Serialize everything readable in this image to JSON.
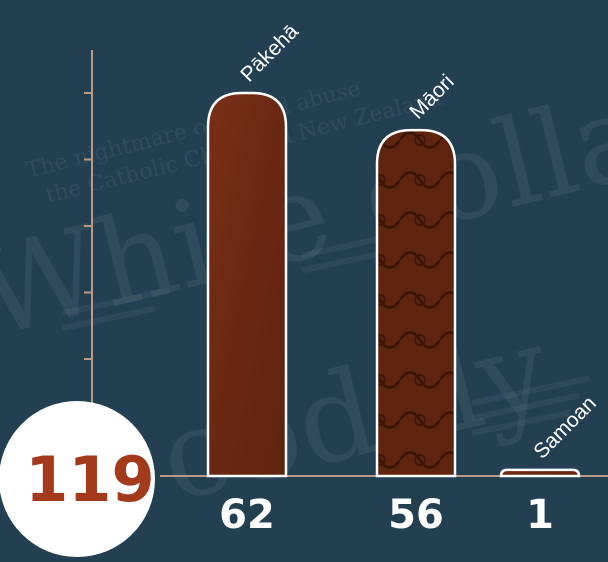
{
  "chart_data": {
    "type": "bar",
    "categories": [
      "Pākehā",
      "Māori",
      "Samoan"
    ],
    "values": [
      62,
      56,
      1
    ],
    "total": "119",
    "value_labels": [
      "62",
      "56",
      "1"
    ],
    "ylim": [
      0,
      62
    ],
    "grid": false,
    "colors": {
      "background": "#233f52",
      "bar_fill": "#6e2a14",
      "bar_stroke": "#ffffff",
      "axis": "#b89a86",
      "total_text": "#a33a1c",
      "total_circle": "#ffffff"
    }
  }
}
